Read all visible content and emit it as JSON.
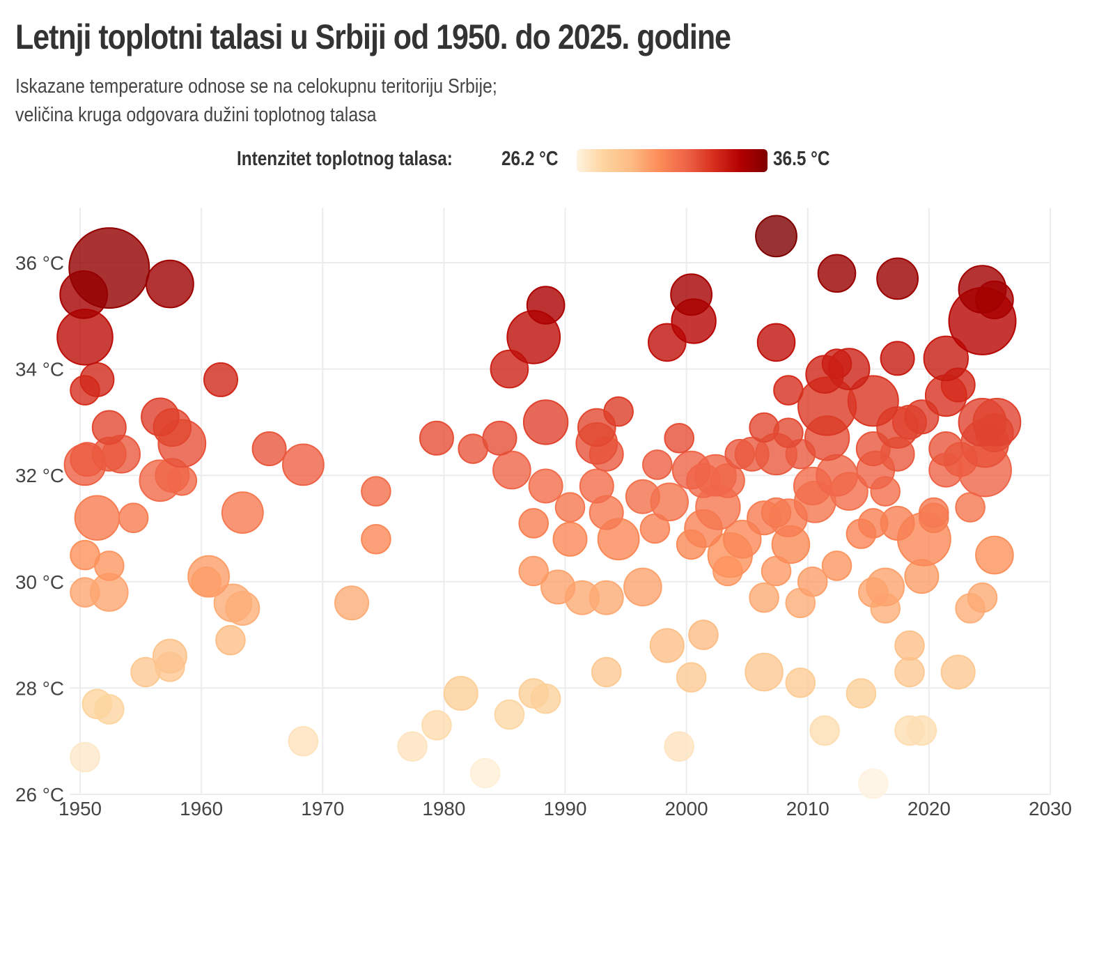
{
  "title": "Letnji toplotni talasi u Srbiji od 1950. do 2025. godine",
  "subtitle_line1": "Iskazane temperature odnose se na celokupnu teritoriju Srbije;",
  "subtitle_line2": "veličina kruga odgovara dužini toplotnog talasa",
  "legend": {
    "label": "Intenzitet toplotnog talasa:",
    "min_label": "26.2 °C",
    "max_label": "36.5 °C",
    "min_value": 26.2,
    "max_value": 36.5,
    "colors": [
      "#fff3e0",
      "#fdd49e",
      "#fdbb84",
      "#fc8d59",
      "#ef6548",
      "#d7301f",
      "#b30000",
      "#7f0000"
    ]
  },
  "chart_data": {
    "type": "scatter",
    "title": "Letnji toplotni talasi u Srbiji od 1950. do 2025. godine",
    "xlabel": "",
    "ylabel": "",
    "xlim": [
      1950,
      2030
    ],
    "ylim": [
      26,
      37
    ],
    "x_ticks": [
      1950,
      1960,
      1970,
      1980,
      1990,
      2000,
      2010,
      2020,
      2030
    ],
    "x_tick_labels": [
      "1950",
      "1960",
      "1970",
      "1980",
      "1990",
      "2000",
      "2010",
      "2020",
      "2030"
    ],
    "y_ticks": [
      26,
      28,
      30,
      32,
      34,
      36
    ],
    "y_tick_labels": [
      "26 °C",
      "28 °C",
      "30 °C",
      "32 °C",
      "34 °C",
      "36 °C"
    ],
    "grid": true,
    "legend_position": "top-center",
    "size_encoding": "duration of heat wave (relative)",
    "color_encoding": "intensity (°C)",
    "points": [
      {
        "x": 1952.4,
        "y": 35.9,
        "size": 23
      },
      {
        "x": 1950.3,
        "y": 35.4,
        "size": 8
      },
      {
        "x": 1957.4,
        "y": 35.6,
        "size": 8
      },
      {
        "x": 1950.4,
        "y": 34.6,
        "size": 11
      },
      {
        "x": 1951.4,
        "y": 33.8,
        "size": 4
      },
      {
        "x": 1950.4,
        "y": 33.6,
        "size": 3
      },
      {
        "x": 1961.6,
        "y": 33.8,
        "size": 4
      },
      {
        "x": 1952.4,
        "y": 32.9,
        "size": 4
      },
      {
        "x": 1956.6,
        "y": 33.1,
        "size": 5
      },
      {
        "x": 1957.6,
        "y": 32.9,
        "size": 5
      },
      {
        "x": 1958.4,
        "y": 32.6,
        "size": 8
      },
      {
        "x": 1953.4,
        "y": 32.4,
        "size": 5
      },
      {
        "x": 1952.4,
        "y": 32.4,
        "size": 4
      },
      {
        "x": 1950.4,
        "y": 32.2,
        "size": 6
      },
      {
        "x": 1950.6,
        "y": 32.3,
        "size": 4
      },
      {
        "x": 1956.6,
        "y": 31.9,
        "size": 6
      },
      {
        "x": 1957.6,
        "y": 32.0,
        "size": 4
      },
      {
        "x": 1958.4,
        "y": 31.9,
        "size": 3
      },
      {
        "x": 1965.6,
        "y": 32.5,
        "size": 4
      },
      {
        "x": 1968.4,
        "y": 32.2,
        "size": 6
      },
      {
        "x": 1951.4,
        "y": 31.2,
        "size": 7
      },
      {
        "x": 1954.4,
        "y": 31.2,
        "size": 3
      },
      {
        "x": 1963.4,
        "y": 31.3,
        "size": 6
      },
      {
        "x": 1950.4,
        "y": 30.5,
        "size": 3
      },
      {
        "x": 1952.4,
        "y": 30.3,
        "size": 3
      },
      {
        "x": 1950.4,
        "y": 29.8,
        "size": 3
      },
      {
        "x": 1952.4,
        "y": 29.8,
        "size": 5
      },
      {
        "x": 1960.6,
        "y": 30.1,
        "size": 6
      },
      {
        "x": 1960.4,
        "y": 30.0,
        "size": 3
      },
      {
        "x": 1962.6,
        "y": 29.6,
        "size": 5
      },
      {
        "x": 1963.4,
        "y": 29.5,
        "size": 4
      },
      {
        "x": 1962.4,
        "y": 28.9,
        "size": 3
      },
      {
        "x": 1955.4,
        "y": 28.3,
        "size": 3
      },
      {
        "x": 1957.4,
        "y": 28.6,
        "size": 4
      },
      {
        "x": 1957.4,
        "y": 28.4,
        "size": 3
      },
      {
        "x": 1951.4,
        "y": 27.7,
        "size": 3
      },
      {
        "x": 1952.4,
        "y": 27.6,
        "size": 3
      },
      {
        "x": 1950.4,
        "y": 26.7,
        "size": 3
      },
      {
        "x": 1968.4,
        "y": 27.0,
        "size": 3
      },
      {
        "x": 1972.4,
        "y": 29.6,
        "size": 4
      },
      {
        "x": 1974.4,
        "y": 31.7,
        "size": 3
      },
      {
        "x": 1974.4,
        "y": 30.8,
        "size": 3
      },
      {
        "x": 1979.4,
        "y": 32.7,
        "size": 4
      },
      {
        "x": 1982.4,
        "y": 32.5,
        "size": 3
      },
      {
        "x": 1984.6,
        "y": 32.7,
        "size": 4
      },
      {
        "x": 1985.6,
        "y": 32.1,
        "size": 5
      },
      {
        "x": 1985.4,
        "y": 34.0,
        "size": 5
      },
      {
        "x": 1987.4,
        "y": 34.6,
        "size": 10
      },
      {
        "x": 1988.4,
        "y": 35.2,
        "size": 5
      },
      {
        "x": 1988.4,
        "y": 33.0,
        "size": 7
      },
      {
        "x": 1988.4,
        "y": 31.8,
        "size": 4
      },
      {
        "x": 1987.4,
        "y": 31.1,
        "size": 3
      },
      {
        "x": 1990.4,
        "y": 31.4,
        "size": 3
      },
      {
        "x": 1990.4,
        "y": 30.8,
        "size": 4
      },
      {
        "x": 1987.4,
        "y": 30.2,
        "size": 3
      },
      {
        "x": 1989.4,
        "y": 29.9,
        "size": 4
      },
      {
        "x": 1991.4,
        "y": 29.7,
        "size": 4
      },
      {
        "x": 1993.4,
        "y": 29.7,
        "size": 4
      },
      {
        "x": 1992.6,
        "y": 32.9,
        "size": 5
      },
      {
        "x": 1992.6,
        "y": 32.6,
        "size": 6
      },
      {
        "x": 1993.4,
        "y": 32.4,
        "size": 4
      },
      {
        "x": 1994.4,
        "y": 33.2,
        "size": 3
      },
      {
        "x": 1992.6,
        "y": 31.8,
        "size": 4
      },
      {
        "x": 1993.4,
        "y": 31.3,
        "size": 4
      },
      {
        "x": 1994.4,
        "y": 30.8,
        "size": 6
      },
      {
        "x": 1996.4,
        "y": 29.9,
        "size": 5
      },
      {
        "x": 1996.4,
        "y": 31.6,
        "size": 4
      },
      {
        "x": 1997.6,
        "y": 32.2,
        "size": 3
      },
      {
        "x": 1997.4,
        "y": 31.0,
        "size": 3
      },
      {
        "x": 1998.6,
        "y": 31.5,
        "size": 5
      },
      {
        "x": 1999.4,
        "y": 32.7,
        "size": 3
      },
      {
        "x": 1998.4,
        "y": 34.5,
        "size": 5
      },
      {
        "x": 2000.4,
        "y": 35.4,
        "size": 6
      },
      {
        "x": 2000.6,
        "y": 34.9,
        "size": 7
      },
      {
        "x": 2000.4,
        "y": 32.1,
        "size": 5
      },
      {
        "x": 2001.4,
        "y": 31.9,
        "size": 4
      },
      {
        "x": 2002.4,
        "y": 32.0,
        "size": 6
      },
      {
        "x": 2002.6,
        "y": 31.4,
        "size": 7
      },
      {
        "x": 2003.4,
        "y": 31.9,
        "size": 4
      },
      {
        "x": 2000.4,
        "y": 30.7,
        "size": 3
      },
      {
        "x": 2001.4,
        "y": 31.0,
        "size": 5
      },
      {
        "x": 2003.6,
        "y": 30.5,
        "size": 7
      },
      {
        "x": 2003.4,
        "y": 30.2,
        "size": 3
      },
      {
        "x": 2004.6,
        "y": 30.8,
        "size": 5
      },
      {
        "x": 2004.4,
        "y": 32.4,
        "size": 3
      },
      {
        "x": 2005.4,
        "y": 32.4,
        "size": 4
      },
      {
        "x": 2006.4,
        "y": 32.9,
        "size": 3
      },
      {
        "x": 2007.4,
        "y": 32.4,
        "size": 6
      },
      {
        "x": 2006.4,
        "y": 31.2,
        "size": 4
      },
      {
        "x": 2007.4,
        "y": 31.3,
        "size": 3
      },
      {
        "x": 2008.4,
        "y": 31.2,
        "size": 5
      },
      {
        "x": 2008.6,
        "y": 30.7,
        "size": 5
      },
      {
        "x": 2007.4,
        "y": 30.2,
        "size": 3
      },
      {
        "x": 2006.4,
        "y": 29.7,
        "size": 3
      },
      {
        "x": 2008.4,
        "y": 32.8,
        "size": 3
      },
      {
        "x": 2009.4,
        "y": 32.4,
        "size": 3
      },
      {
        "x": 2008.4,
        "y": 33.6,
        "size": 3
      },
      {
        "x": 2007.4,
        "y": 34.5,
        "size": 5
      },
      {
        "x": 2007.4,
        "y": 36.5,
        "size": 6
      },
      {
        "x": 2009.4,
        "y": 29.6,
        "size": 3
      },
      {
        "x": 2010.4,
        "y": 30.0,
        "size": 3
      },
      {
        "x": 2010.6,
        "y": 31.5,
        "size": 6
      },
      {
        "x": 2010.4,
        "y": 31.8,
        "size": 5
      },
      {
        "x": 2011.4,
        "y": 33.9,
        "size": 5
      },
      {
        "x": 2011.6,
        "y": 33.3,
        "size": 12
      },
      {
        "x": 2011.6,
        "y": 32.7,
        "size": 7
      },
      {
        "x": 2012.4,
        "y": 34.1,
        "size": 3
      },
      {
        "x": 2013.4,
        "y": 34.0,
        "size": 6
      },
      {
        "x": 2012.4,
        "y": 32.0,
        "size": 6
      },
      {
        "x": 2013.4,
        "y": 31.7,
        "size": 5
      },
      {
        "x": 2012.4,
        "y": 35.8,
        "size": 5
      },
      {
        "x": 2012.4,
        "y": 30.3,
        "size": 3
      },
      {
        "x": 2011.4,
        "y": 27.2,
        "size": 3
      },
      {
        "x": 2014.4,
        "y": 30.9,
        "size": 3
      },
      {
        "x": 2015.4,
        "y": 33.4,
        "size": 9
      },
      {
        "x": 2015.4,
        "y": 32.5,
        "size": 4
      },
      {
        "x": 2015.6,
        "y": 32.1,
        "size": 5
      },
      {
        "x": 2015.4,
        "y": 31.1,
        "size": 3
      },
      {
        "x": 2016.4,
        "y": 31.7,
        "size": 3
      },
      {
        "x": 2015.4,
        "y": 29.8,
        "size": 3
      },
      {
        "x": 2016.4,
        "y": 29.9,
        "size": 5
      },
      {
        "x": 2016.4,
        "y": 29.5,
        "size": 3
      },
      {
        "x": 2017.4,
        "y": 31.1,
        "size": 4
      },
      {
        "x": 2017.4,
        "y": 32.4,
        "size": 4
      },
      {
        "x": 2017.4,
        "y": 32.9,
        "size": 6
      },
      {
        "x": 2018.4,
        "y": 33.0,
        "size": 4
      },
      {
        "x": 2017.4,
        "y": 34.2,
        "size": 4
      },
      {
        "x": 2017.4,
        "y": 35.7,
        "size": 6
      },
      {
        "x": 2019.4,
        "y": 33.1,
        "size": 4
      },
      {
        "x": 2019.6,
        "y": 30.8,
        "size": 10
      },
      {
        "x": 2019.4,
        "y": 30.1,
        "size": 4
      },
      {
        "x": 2018.4,
        "y": 28.8,
        "size": 3
      },
      {
        "x": 2018.4,
        "y": 28.3,
        "size": 3
      },
      {
        "x": 2018.4,
        "y": 27.2,
        "size": 3
      },
      {
        "x": 2019.4,
        "y": 27.2,
        "size": 3
      },
      {
        "x": 2020.4,
        "y": 31.3,
        "size": 3
      },
      {
        "x": 2020.4,
        "y": 31.2,
        "size": 3
      },
      {
        "x": 2021.4,
        "y": 34.2,
        "size": 7
      },
      {
        "x": 2021.4,
        "y": 33.5,
        "size": 6
      },
      {
        "x": 2022.4,
        "y": 33.7,
        "size": 4
      },
      {
        "x": 2021.4,
        "y": 32.5,
        "size": 4
      },
      {
        "x": 2021.4,
        "y": 32.1,
        "size": 4
      },
      {
        "x": 2022.6,
        "y": 32.3,
        "size": 4
      },
      {
        "x": 2023.4,
        "y": 31.4,
        "size": 3
      },
      {
        "x": 2023.4,
        "y": 29.5,
        "size": 3
      },
      {
        "x": 2024.4,
        "y": 29.7,
        "size": 3
      },
      {
        "x": 2022.4,
        "y": 28.3,
        "size": 4
      },
      {
        "x": 2024.4,
        "y": 35.5,
        "size": 8
      },
      {
        "x": 2025.4,
        "y": 35.3,
        "size": 5
      },
      {
        "x": 2024.4,
        "y": 34.9,
        "size": 16
      },
      {
        "x": 2024.4,
        "y": 33.0,
        "size": 8
      },
      {
        "x": 2025.6,
        "y": 33.0,
        "size": 8
      },
      {
        "x": 2024.6,
        "y": 32.6,
        "size": 8
      },
      {
        "x": 2025.4,
        "y": 32.8,
        "size": 5
      },
      {
        "x": 2024.6,
        "y": 32.1,
        "size": 10
      },
      {
        "x": 2025.4,
        "y": 30.5,
        "size": 5
      },
      {
        "x": 1998.4,
        "y": 28.8,
        "size": 4
      },
      {
        "x": 2001.4,
        "y": 29.0,
        "size": 3
      },
      {
        "x": 2000.4,
        "y": 28.2,
        "size": 3
      },
      {
        "x": 2006.4,
        "y": 28.3,
        "size": 5
      },
      {
        "x": 2009.4,
        "y": 28.1,
        "size": 3
      },
      {
        "x": 2014.4,
        "y": 27.9,
        "size": 3
      },
      {
        "x": 1993.4,
        "y": 28.3,
        "size": 3
      },
      {
        "x": 1981.4,
        "y": 27.9,
        "size": 4
      },
      {
        "x": 1987.4,
        "y": 27.9,
        "size": 3
      },
      {
        "x": 1988.4,
        "y": 27.8,
        "size": 3
      },
      {
        "x": 1985.4,
        "y": 27.5,
        "size": 3
      },
      {
        "x": 1979.4,
        "y": 27.3,
        "size": 3
      },
      {
        "x": 1977.4,
        "y": 26.9,
        "size": 3
      },
      {
        "x": 1983.4,
        "y": 26.4,
        "size": 3
      },
      {
        "x": 1999.4,
        "y": 26.9,
        "size": 3
      },
      {
        "x": 2015.4,
        "y": 26.2,
        "size": 3
      }
    ]
  }
}
